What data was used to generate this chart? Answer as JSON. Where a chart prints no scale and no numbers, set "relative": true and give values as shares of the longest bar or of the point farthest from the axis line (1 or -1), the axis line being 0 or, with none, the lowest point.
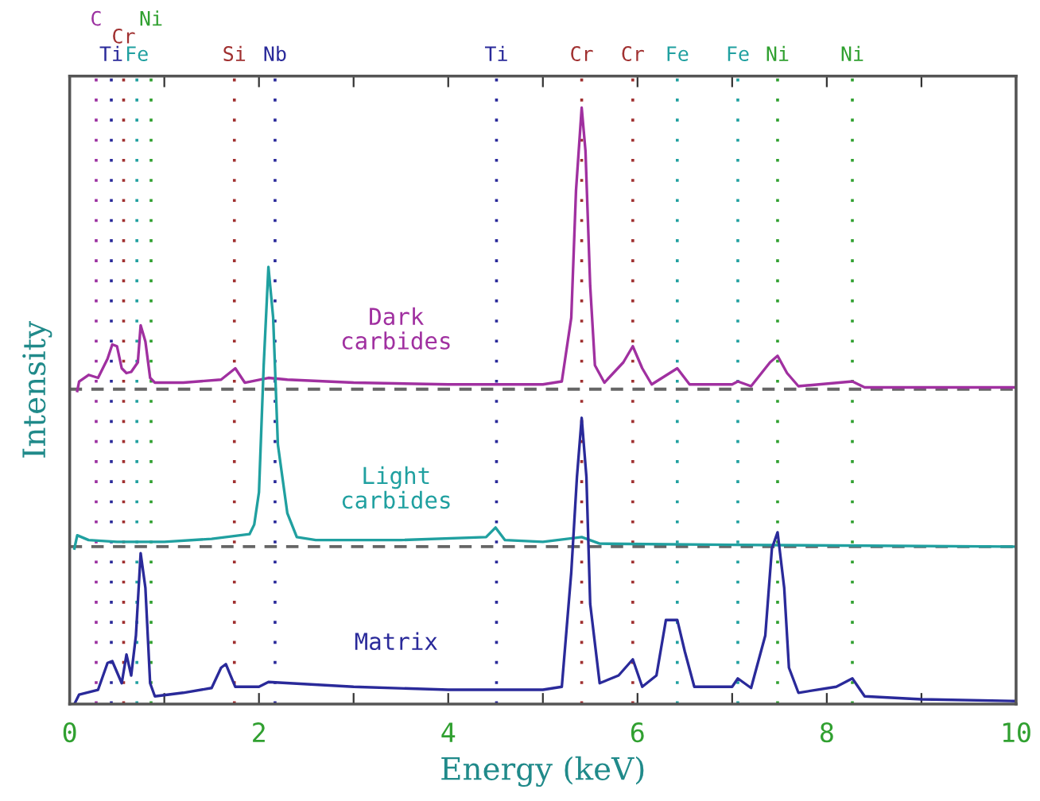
{
  "chart_data": {
    "type": "line",
    "relative": true,
    "xlabel": "Energy (keV)",
    "ylabel": "Intensity",
    "xlim": [
      0,
      10
    ],
    "xticks": [
      0,
      {
        "value": 1,
        "label": null
      },
      2,
      {
        "value": 3,
        "label": null
      },
      4,
      {
        "value": 5,
        "label": null
      },
      6,
      {
        "value": 7,
        "label": null
      },
      8,
      {
        "value": 9,
        "label": null
      },
      10
    ],
    "tick_labels": "x",
    "grid": false,
    "legend": false,
    "marker": "none",
    "line_style": "solid",
    "series": [
      {
        "name": "Dark carbides",
        "color": "#a030a0",
        "x": [
          0.08,
          0.1,
          0.2,
          0.3,
          0.4,
          0.45,
          0.5,
          0.55,
          0.6,
          0.65,
          0.72,
          0.75,
          0.8,
          0.85,
          0.9,
          1.2,
          1.6,
          1.75,
          1.85,
          2.1,
          2.3,
          3.0,
          4.0,
          5.0,
          5.2,
          5.3,
          5.35,
          5.41,
          5.45,
          5.5,
          5.55,
          5.65,
          5.85,
          5.95,
          6.05,
          6.15,
          6.42,
          6.55,
          7.0,
          7.06,
          7.2,
          7.4,
          7.48,
          7.58,
          7.7,
          8.27,
          8.4,
          9.0,
          10.0
        ],
        "values": [
          0.525,
          0.541,
          0.552,
          0.547,
          0.579,
          0.603,
          0.6,
          0.563,
          0.555,
          0.557,
          0.573,
          0.635,
          0.608,
          0.547,
          0.539,
          0.539,
          0.544,
          0.563,
          0.539,
          0.547,
          0.544,
          0.539,
          0.536,
          0.536,
          0.541,
          0.648,
          0.861,
          1.0,
          0.928,
          0.701,
          0.568,
          0.539,
          0.573,
          0.6,
          0.563,
          0.536,
          0.563,
          0.536,
          0.536,
          0.541,
          0.533,
          0.573,
          0.584,
          0.555,
          0.533,
          0.541,
          0.531,
          0.531,
          0.531
        ]
      },
      {
        "name": "Light carbides",
        "color": "#20a0a0",
        "x": [
          0.05,
          0.08,
          0.2,
          0.5,
          1.0,
          1.5,
          1.9,
          1.95,
          2.0,
          2.05,
          2.1,
          2.15,
          2.2,
          2.3,
          2.4,
          2.6,
          3.5,
          4.4,
          4.5,
          4.6,
          5.0,
          5.41,
          5.6,
          7.0,
          10.0
        ],
        "values": [
          0.261,
          0.283,
          0.275,
          0.272,
          0.272,
          0.277,
          0.285,
          0.301,
          0.355,
          0.568,
          0.733,
          0.648,
          0.435,
          0.32,
          0.28,
          0.275,
          0.275,
          0.28,
          0.296,
          0.275,
          0.272,
          0.28,
          0.269,
          0.267,
          0.264
        ]
      },
      {
        "name": "Matrix",
        "color": "#2a2a9a",
        "x": [
          0.05,
          0.1,
          0.3,
          0.4,
          0.45,
          0.55,
          0.6,
          0.65,
          0.7,
          0.75,
          0.8,
          0.85,
          0.9,
          1.2,
          1.5,
          1.6,
          1.65,
          1.75,
          2.0,
          2.1,
          3.0,
          4.0,
          5.0,
          5.2,
          5.3,
          5.36,
          5.41,
          5.46,
          5.5,
          5.6,
          5.8,
          5.95,
          6.05,
          6.2,
          6.3,
          6.42,
          6.5,
          6.6,
          7.0,
          7.06,
          7.2,
          7.35,
          7.42,
          7.48,
          7.55,
          7.6,
          7.7,
          8.1,
          8.27,
          8.4,
          9.0,
          10.0
        ],
        "values": [
          0.0,
          0.016,
          0.024,
          0.069,
          0.072,
          0.035,
          0.083,
          0.048,
          0.115,
          0.253,
          0.195,
          0.035,
          0.013,
          0.019,
          0.027,
          0.061,
          0.067,
          0.029,
          0.029,
          0.037,
          0.029,
          0.024,
          0.024,
          0.029,
          0.221,
          0.381,
          0.48,
          0.381,
          0.168,
          0.035,
          0.048,
          0.075,
          0.029,
          0.048,
          0.141,
          0.141,
          0.088,
          0.029,
          0.029,
          0.043,
          0.027,
          0.115,
          0.261,
          0.288,
          0.195,
          0.061,
          0.019,
          0.029,
          0.043,
          0.013,
          0.008,
          0.005
        ]
      }
    ],
    "ref_lines": [
      {
        "axis": "y",
        "value": 0.528,
        "color": "#666666",
        "line_style": "dashed"
      },
      {
        "axis": "y",
        "value": 0.264,
        "color": "#666666",
        "line_style": "dashed"
      },
      {
        "axis": "x",
        "value": 0.28,
        "label": "C",
        "color": "#9b30a0",
        "line_style": "dotted"
      },
      {
        "axis": "x",
        "value": 0.44,
        "label": "Ti",
        "color": "#2a2a9a",
        "line_style": "dotted"
      },
      {
        "axis": "x",
        "value": 0.57,
        "label": "Cr",
        "color": "#a03030",
        "line_style": "dotted"
      },
      {
        "axis": "x",
        "value": 0.71,
        "label": "Fe",
        "color": "#20a0a0",
        "line_style": "dotted"
      },
      {
        "axis": "x",
        "value": 0.86,
        "label": "Ni",
        "color": "#30a030",
        "line_style": "dotted"
      },
      {
        "axis": "x",
        "value": 1.74,
        "label": "Si",
        "color": "#a03030",
        "line_style": "dotted"
      },
      {
        "axis": "x",
        "value": 2.17,
        "label": "Nb",
        "color": "#2a2a9a",
        "line_style": "dotted"
      },
      {
        "axis": "x",
        "value": 4.51,
        "label": "Ti",
        "color": "#2a2a9a",
        "line_style": "dotted"
      },
      {
        "axis": "x",
        "value": 5.41,
        "label": "Cr",
        "color": "#a03030",
        "line_style": "dotted"
      },
      {
        "axis": "x",
        "value": 5.95,
        "label": "Cr",
        "color": "#a03030",
        "line_style": "dotted"
      },
      {
        "axis": "x",
        "value": 6.42,
        "label": "Fe",
        "color": "#20a0a0",
        "line_style": "dotted"
      },
      {
        "axis": "x",
        "value": 7.06,
        "label": "Fe",
        "color": "#20a0a0",
        "line_style": "dotted"
      },
      {
        "axis": "x",
        "value": 7.48,
        "label": "Ni",
        "color": "#30a030",
        "line_style": "dotted"
      },
      {
        "axis": "x",
        "value": 8.27,
        "label": "Ni",
        "color": "#30a030",
        "line_style": "dotted"
      }
    ]
  }
}
